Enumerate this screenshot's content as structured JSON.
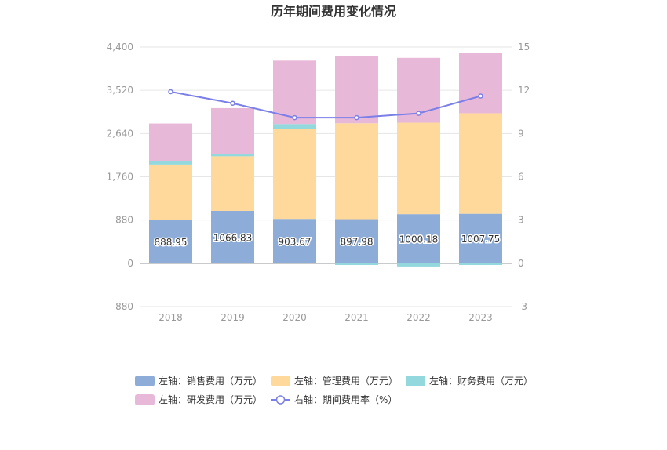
{
  "chart_data": {
    "type": "bar",
    "title": "历年期间费用变化情况",
    "categories": [
      "2018",
      "2019",
      "2020",
      "2021",
      "2022",
      "2023"
    ],
    "left_axis": {
      "min": -880,
      "max": 4400,
      "ticks": [
        "-880",
        "0",
        "880",
        "1,760",
        "2,640",
        "3,520",
        "4,400"
      ],
      "tick_values": [
        -880,
        0,
        880,
        1760,
        2640,
        3520,
        4400
      ]
    },
    "right_axis": {
      "min": -3,
      "max": 15,
      "ticks": [
        "-3",
        "0",
        "3",
        "6",
        "9",
        "12",
        "15"
      ],
      "tick_values": [
        -3,
        0,
        3,
        6,
        9,
        12,
        15
      ]
    },
    "grid": true,
    "legend_position": "bottom",
    "series": [
      {
        "name": "左轴：销售费用（万元）",
        "type": "bar",
        "axis": "left",
        "color": "#8eacd8",
        "values": [
          888.95,
          1066.83,
          903.67,
          897.98,
          1000.18,
          1007.75
        ],
        "labels": [
          "888.95",
          "1066.83",
          "903.67",
          "897.98",
          "1000.18",
          "1007.75"
        ]
      },
      {
        "name": "左轴：管理费用（万元）",
        "type": "bar",
        "axis": "left",
        "color": "#ffd99c",
        "values": [
          1120,
          1110,
          1830,
          1950,
          1860,
          2045
        ]
      },
      {
        "name": "左轴：财务费用（万元）",
        "type": "bar",
        "axis": "left",
        "color": "#93d8dc",
        "values": [
          75,
          40,
          100,
          -35,
          -65,
          -35
        ]
      },
      {
        "name": "左轴：研发费用（万元）",
        "type": "bar",
        "axis": "left",
        "color": "#e8b8d9",
        "values": [
          760,
          940,
          1290,
          1370,
          1320,
          1235
        ]
      },
      {
        "name": "右轴：期间费用率（%）",
        "type": "line",
        "axis": "right",
        "color": "#7b7fe8",
        "values": [
          11.9,
          11.1,
          10.1,
          10.1,
          10.4,
          11.6
        ]
      }
    ]
  }
}
